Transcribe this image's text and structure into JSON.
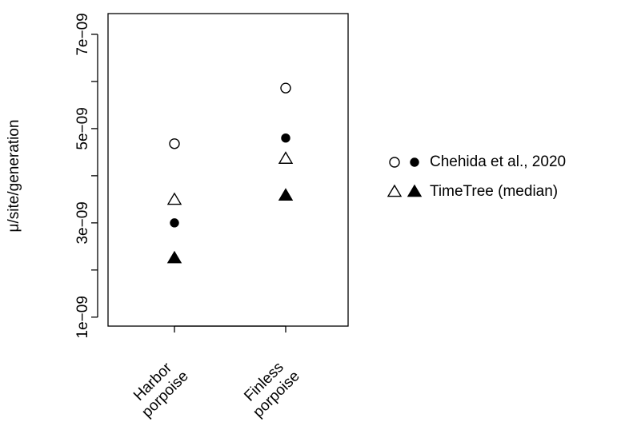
{
  "chart_data": {
    "type": "dot",
    "y_label": "μ/site/generation",
    "categories": [
      "Harbor\nporpoise",
      "Finless\nporpoise"
    ],
    "ylim": [
      8.1e-10,
      7.44e-09
    ],
    "yticks": [
      {
        "value": 1e-09,
        "label": "1e−09"
      },
      {
        "value": 3e-09,
        "label": "3e−09"
      },
      {
        "value": 5e-09,
        "label": "5e−09"
      },
      {
        "value": 7e-09,
        "label": "7e−09"
      }
    ],
    "yminorticks": [
      2e-09,
      4e-09,
      6e-09
    ],
    "color": "#000000",
    "series": [
      {
        "name": "Chehida et al., 2020",
        "marker": "circle",
        "values": [
          4.68e-09,
          5.86e-09
        ],
        "values_filled": [
          3e-09,
          4.8e-09
        ]
      },
      {
        "name": "TimeTree (median)",
        "marker": "triangle",
        "values": [
          3.49e-09,
          4.36e-09
        ],
        "values_filled": [
          2.25e-09,
          3.58e-09
        ]
      }
    ]
  }
}
